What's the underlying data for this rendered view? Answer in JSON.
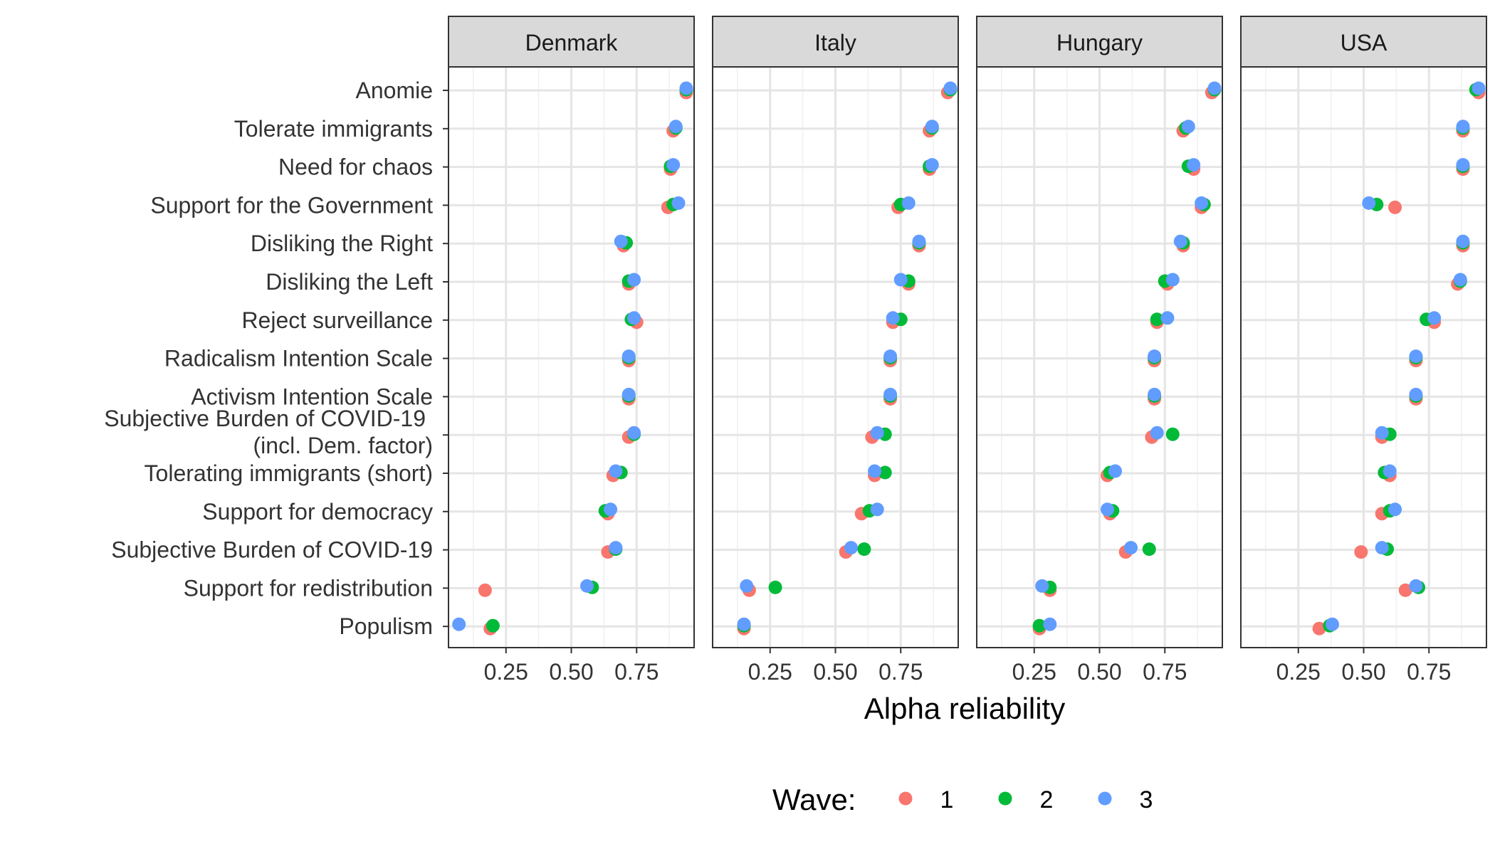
{
  "chart_data": {
    "type": "scatter",
    "xlabel": "Alpha reliability",
    "ylabel": "",
    "xlim": [
      0.03,
      0.97
    ],
    "xticks": [
      0.25,
      0.5,
      0.75
    ],
    "xtick_labels": [
      "0.25",
      "0.50",
      "0.75"
    ],
    "grid": true,
    "legend": {
      "title": "Wave:",
      "placement": "bottom",
      "entries": [
        "1",
        "2",
        "3"
      ]
    },
    "colors": {
      "1": "#F8766D",
      "2": "#00BA38",
      "3": "#619CFF"
    },
    "categories": [
      "Anomie",
      "Tolerate immigrants",
      "Need for chaos",
      "Support for the Government",
      "Disliking the Right",
      "Disliking the Left",
      "Reject surveillance",
      "Radicalism Intention Scale",
      "Activism Intention Scale",
      "Subjective Burden of COVID-19\n(incl. Dem. factor)",
      "Tolerating immigrants (short)",
      "Support for democracy",
      "Subjective Burden of COVID-19",
      "Support for redistribution",
      "Populism"
    ],
    "panels": [
      {
        "name": "Denmark",
        "series": [
          {
            "name": "1",
            "values": [
              0.94,
              0.89,
              0.88,
              0.87,
              0.7,
              0.72,
              0.75,
              0.72,
              0.72,
              0.72,
              0.66,
              0.64,
              0.64,
              0.17,
              0.19
            ]
          },
          {
            "name": "2",
            "values": [
              0.94,
              0.9,
              0.88,
              0.89,
              0.71,
              0.72,
              0.73,
              0.72,
              0.72,
              0.74,
              0.69,
              0.63,
              0.67,
              0.58,
              0.2
            ]
          },
          {
            "name": "3",
            "values": [
              0.94,
              0.9,
              0.89,
              0.91,
              0.69,
              0.74,
              0.74,
              0.72,
              0.72,
              0.74,
              0.67,
              0.65,
              0.67,
              0.56,
              0.07
            ]
          }
        ]
      },
      {
        "name": "Italy",
        "series": [
          {
            "name": "1",
            "values": [
              0.93,
              0.86,
              0.86,
              0.74,
              0.82,
              0.78,
              0.72,
              0.71,
              0.71,
              0.64,
              0.65,
              0.6,
              0.54,
              0.17,
              0.15
            ]
          },
          {
            "name": "2",
            "values": [
              0.94,
              0.87,
              0.86,
              0.75,
              0.82,
              0.78,
              0.75,
              0.71,
              0.71,
              0.69,
              0.69,
              0.63,
              0.61,
              0.27,
              0.15
            ]
          },
          {
            "name": "3",
            "values": [
              0.94,
              0.87,
              0.87,
              0.78,
              0.82,
              0.75,
              0.72,
              0.71,
              0.71,
              0.66,
              0.65,
              0.66,
              0.56,
              0.16,
              0.15
            ]
          }
        ]
      },
      {
        "name": "Hungary",
        "series": [
          {
            "name": "1",
            "values": [
              0.93,
              0.82,
              0.86,
              0.89,
              0.82,
              0.76,
              0.72,
              0.71,
              0.71,
              0.7,
              0.53,
              0.54,
              0.6,
              0.31,
              0.27
            ]
          },
          {
            "name": "2",
            "values": [
              0.94,
              0.83,
              0.84,
              0.9,
              0.82,
              0.75,
              0.72,
              0.71,
              0.71,
              0.78,
              0.54,
              0.55,
              0.69,
              0.31,
              0.27
            ]
          },
          {
            "name": "3",
            "values": [
              0.94,
              0.84,
              0.86,
              0.89,
              0.81,
              0.78,
              0.76,
              0.71,
              0.71,
              0.72,
              0.56,
              0.53,
              0.62,
              0.28,
              0.31
            ]
          }
        ]
      },
      {
        "name": "USA",
        "series": [
          {
            "name": "1",
            "values": [
              0.94,
              0.88,
              0.88,
              0.62,
              0.88,
              0.86,
              0.77,
              0.7,
              0.7,
              0.57,
              0.6,
              0.57,
              0.49,
              0.66,
              0.33
            ]
          },
          {
            "name": "2",
            "values": [
              0.93,
              0.88,
              0.88,
              0.55,
              0.88,
              0.87,
              0.74,
              0.7,
              0.7,
              0.6,
              0.58,
              0.6,
              0.59,
              0.71,
              0.37
            ]
          },
          {
            "name": "3",
            "values": [
              0.94,
              0.88,
              0.88,
              0.52,
              0.88,
              0.87,
              0.77,
              0.7,
              0.7,
              0.57,
              0.6,
              0.62,
              0.57,
              0.7,
              0.38
            ]
          }
        ]
      }
    ]
  }
}
